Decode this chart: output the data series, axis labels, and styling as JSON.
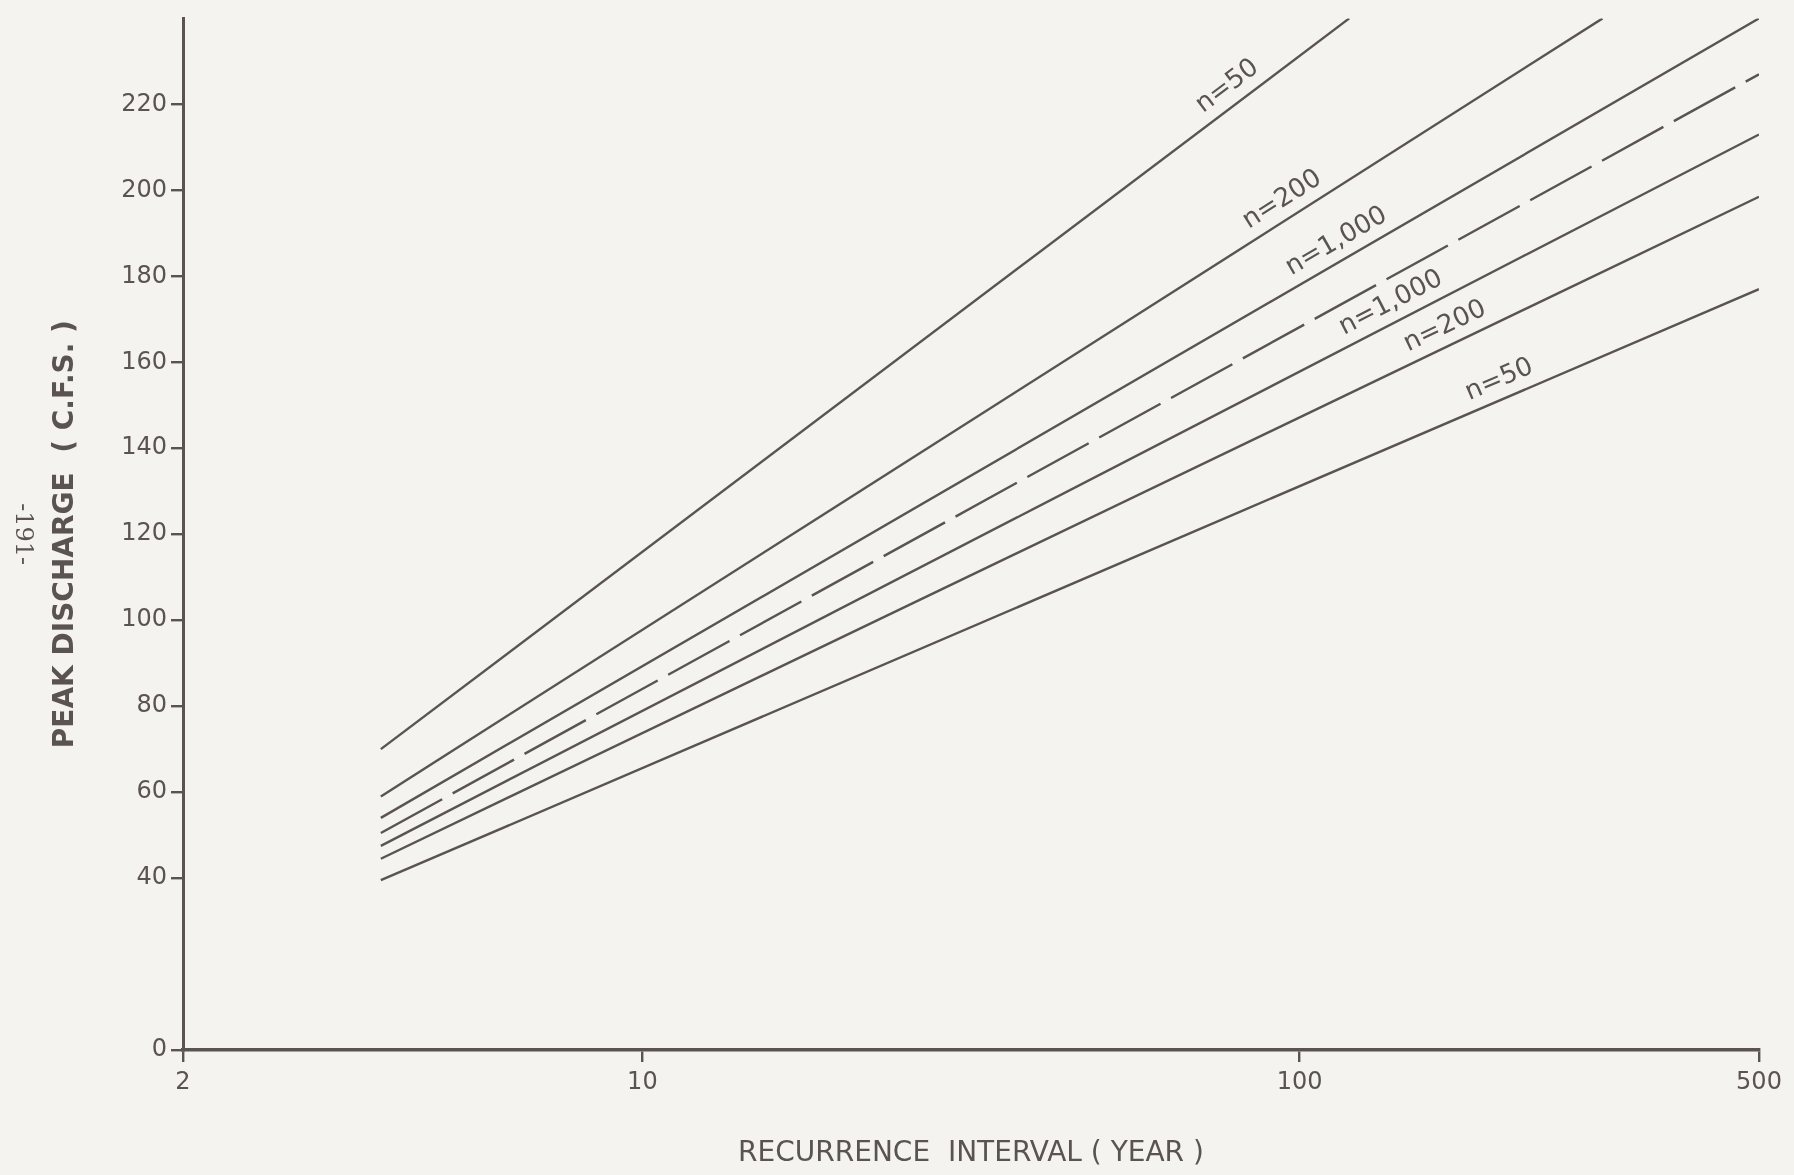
{
  "chart_data": {
    "type": "line",
    "xlabel": "RECURRENCE  INTERVAL ( YEAR )",
    "ylabel": "PEAK DISCHARGE  ( C.F.S. )",
    "log": "x",
    "xlim": [
      2,
      500
    ],
    "xticks": [
      2,
      10,
      100,
      500
    ],
    "ylim": [
      0,
      240
    ],
    "yticks": [
      0,
      40,
      60,
      80,
      100,
      120,
      140,
      160,
      180,
      200,
      220
    ],
    "grid": false,
    "legend": false,
    "marker": "none",
    "line_style": "solid",
    "annotations": [
      "-191-"
    ],
    "series": [
      {
        "name": "n=50",
        "color": "#5a5352",
        "x": [
          4,
          119
        ],
        "values": [
          70,
          240
        ]
      },
      {
        "name": "n=200",
        "color": "#5a5352",
        "x": [
          4,
          289
        ],
        "values": [
          59,
          240
        ]
      },
      {
        "name": "n=1,000",
        "color": "#5a5352",
        "x": [
          4,
          500
        ],
        "values": [
          54,
          240
        ]
      },
      {
        "color": "#5a5352",
        "line_style": "dashed",
        "x": [
          4,
          500
        ],
        "values": [
          50.5,
          227
        ]
      },
      {
        "name": "n=1,000",
        "color": "#5a5352",
        "x": [
          4,
          500
        ],
        "values": [
          47.5,
          213
        ]
      },
      {
        "name": "n=200",
        "color": "#5a5352",
        "x": [
          4,
          500
        ],
        "values": [
          44.5,
          198.5
        ]
      },
      {
        "name": "n=50",
        "color": "#5a5352",
        "x": [
          4,
          500
        ],
        "values": [
          39.5,
          177
        ]
      }
    ]
  }
}
